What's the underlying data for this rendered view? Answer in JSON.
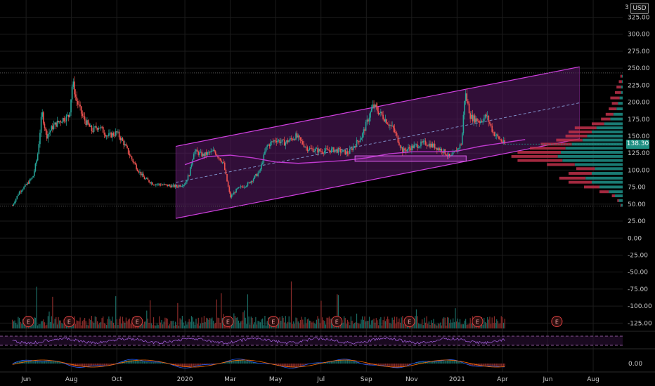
{
  "header": {
    "currency": "USD",
    "corner_label": "3"
  },
  "price_tag": {
    "value": "138.30",
    "price": 138.3,
    "color": "#1e8f82"
  },
  "colors": {
    "up": "#26a69a",
    "down": "#ef5350",
    "channel": "#d040e0",
    "channel_fill": "#5a1a66",
    "grid": "#1c1c1c",
    "profile_up": "#1e9088",
    "profile_down": "#c0304a"
  },
  "chart_data": {
    "type": "candlestick",
    "ylim": [
      -135,
      340
    ],
    "y_ticks": [
      "325.00",
      "300.00",
      "275.00",
      "250.00",
      "225.00",
      "200.00",
      "175.00",
      "150.00",
      "125.00",
      "100.00",
      "75.00",
      "50.00",
      "25.00",
      "0.00",
      "-25.00",
      "-50.00",
      "-75.00",
      "-100.00",
      "-125.00"
    ],
    "x_ticks": [
      "Jun",
      "Aug",
      "Oct",
      "2020",
      "Mar",
      "May",
      "Jul",
      "Sep",
      "Nov",
      "2021",
      "Apr",
      "Jun",
      "Aug"
    ],
    "x_tick_month_index": [
      0,
      2,
      4,
      7,
      9,
      11,
      13,
      15,
      17,
      19,
      21,
      23,
      25
    ],
    "x_domain_months": [
      -1.15,
      26.3
    ],
    "last_data_month": 21.1,
    "price_anchors": [
      {
        "m": -0.6,
        "p": 48
      },
      {
        "m": -0.3,
        "p": 68
      },
      {
        "m": 0.0,
        "p": 78
      },
      {
        "m": 0.3,
        "p": 90
      },
      {
        "m": 0.5,
        "p": 120
      },
      {
        "m": 0.7,
        "p": 185
      },
      {
        "m": 0.9,
        "p": 150
      },
      {
        "m": 1.2,
        "p": 165
      },
      {
        "m": 1.6,
        "p": 175
      },
      {
        "m": 1.9,
        "p": 180
      },
      {
        "m": 2.05,
        "p": 230
      },
      {
        "m": 2.2,
        "p": 205
      },
      {
        "m": 2.5,
        "p": 178
      },
      {
        "m": 2.9,
        "p": 158
      },
      {
        "m": 3.2,
        "p": 165
      },
      {
        "m": 3.6,
        "p": 150
      },
      {
        "m": 4.0,
        "p": 155
      },
      {
        "m": 4.3,
        "p": 140
      },
      {
        "m": 4.6,
        "p": 120
      },
      {
        "m": 4.9,
        "p": 102
      },
      {
        "m": 5.2,
        "p": 88
      },
      {
        "m": 5.6,
        "p": 80
      },
      {
        "m": 6.1,
        "p": 78
      },
      {
        "m": 6.6,
        "p": 76
      },
      {
        "m": 7.0,
        "p": 80
      },
      {
        "m": 7.2,
        "p": 95
      },
      {
        "m": 7.4,
        "p": 128
      },
      {
        "m": 7.8,
        "p": 122
      },
      {
        "m": 8.3,
        "p": 128
      },
      {
        "m": 8.7,
        "p": 110
      },
      {
        "m": 9.0,
        "p": 60
      },
      {
        "m": 9.3,
        "p": 72
      },
      {
        "m": 9.8,
        "p": 80
      },
      {
        "m": 10.3,
        "p": 98
      },
      {
        "m": 10.6,
        "p": 135
      },
      {
        "m": 11.0,
        "p": 145
      },
      {
        "m": 11.4,
        "p": 140
      },
      {
        "m": 11.9,
        "p": 150
      },
      {
        "m": 12.4,
        "p": 132
      },
      {
        "m": 13.0,
        "p": 128
      },
      {
        "m": 13.6,
        "p": 130
      },
      {
        "m": 14.2,
        "p": 125
      },
      {
        "m": 14.8,
        "p": 150
      },
      {
        "m": 15.3,
        "p": 195
      },
      {
        "m": 15.7,
        "p": 180
      },
      {
        "m": 16.2,
        "p": 160
      },
      {
        "m": 16.6,
        "p": 128
      },
      {
        "m": 17.1,
        "p": 135
      },
      {
        "m": 17.6,
        "p": 140
      },
      {
        "m": 18.0,
        "p": 135
      },
      {
        "m": 18.4,
        "p": 128
      },
      {
        "m": 18.7,
        "p": 118
      },
      {
        "m": 19.0,
        "p": 130
      },
      {
        "m": 19.2,
        "p": 140
      },
      {
        "m": 19.35,
        "p": 215
      },
      {
        "m": 19.6,
        "p": 178
      },
      {
        "m": 20.0,
        "p": 172
      },
      {
        "m": 20.3,
        "p": 180
      },
      {
        "m": 20.6,
        "p": 155
      },
      {
        "m": 21.1,
        "p": 138
      }
    ],
    "channel": {
      "start_month": 6.6,
      "end_month": 24.4,
      "upper": [
        135,
        252
      ],
      "middle": [
        82,
        199
      ],
      "lower": [
        29,
        146
      ]
    },
    "moving_average": [
      {
        "m": 7.0,
        "p": 108
      },
      {
        "m": 8.0,
        "p": 120
      },
      {
        "m": 9.0,
        "p": 122
      },
      {
        "m": 10.0,
        "p": 118
      },
      {
        "m": 11.0,
        "p": 112
      },
      {
        "m": 12.0,
        "p": 110
      },
      {
        "m": 13.0,
        "p": 112
      },
      {
        "m": 14.0,
        "p": 114
      },
      {
        "m": 15.0,
        "p": 118
      },
      {
        "m": 16.0,
        "p": 124
      },
      {
        "m": 17.0,
        "p": 127
      },
      {
        "m": 18.0,
        "p": 127
      },
      {
        "m": 19.0,
        "p": 128
      },
      {
        "m": 20.0,
        "p": 135
      },
      {
        "m": 21.0,
        "p": 140
      },
      {
        "m": 22.0,
        "p": 145
      }
    ],
    "support_box": {
      "start_month": 14.5,
      "end_month": 19.4,
      "low": 113,
      "high": 121
    },
    "horizontal_lines": [
      243,
      47
    ],
    "earnings_months": [
      0.1,
      1.9,
      4.9,
      8.9,
      10.9,
      13.7,
      16.9,
      19.9,
      23.4
    ],
    "earnings_label": "E",
    "volume_profile": [
      {
        "p": 48,
        "up": 2,
        "down": 1
      },
      {
        "p": 55,
        "up": 5,
        "down": 2
      },
      {
        "p": 62,
        "up": 10,
        "down": 4
      },
      {
        "p": 68,
        "up": 18,
        "down": 12
      },
      {
        "p": 75,
        "up": 30,
        "down": 20
      },
      {
        "p": 82,
        "up": 40,
        "down": 30
      },
      {
        "p": 88,
        "up": 48,
        "down": 34
      },
      {
        "p": 95,
        "up": 40,
        "down": 30
      },
      {
        "p": 102,
        "up": 36,
        "down": 24
      },
      {
        "p": 108,
        "up": 62,
        "down": 36
      },
      {
        "p": 114,
        "up": 78,
        "down": 58
      },
      {
        "p": 120,
        "up": 84,
        "down": 60
      },
      {
        "p": 126,
        "up": 80,
        "down": 56
      },
      {
        "p": 132,
        "up": 74,
        "down": 46
      },
      {
        "p": 138,
        "up": 66,
        "down": 40
      },
      {
        "p": 144,
        "up": 52,
        "down": 34
      },
      {
        "p": 150,
        "up": 46,
        "down": 28
      },
      {
        "p": 156,
        "up": 40,
        "down": 30
      },
      {
        "p": 162,
        "up": 34,
        "down": 28
      },
      {
        "p": 168,
        "up": 24,
        "down": 16
      },
      {
        "p": 175,
        "up": 16,
        "down": 12
      },
      {
        "p": 182,
        "up": 12,
        "down": 10
      },
      {
        "p": 190,
        "up": 8,
        "down": 10
      },
      {
        "p": 198,
        "up": 6,
        "down": 8
      },
      {
        "p": 206,
        "up": 4,
        "down": 12
      },
      {
        "p": 214,
        "up": 2,
        "down": 8
      },
      {
        "p": 222,
        "up": 2,
        "down": 6
      },
      {
        "p": 230,
        "up": 1,
        "down": 4
      },
      {
        "p": 238,
        "up": 1,
        "down": 2
      }
    ],
    "indicator_panes": {
      "rsi": {
        "upper_band": 70,
        "lower_band": 30
      },
      "macd": {
        "zero_label": "0.00"
      }
    }
  }
}
